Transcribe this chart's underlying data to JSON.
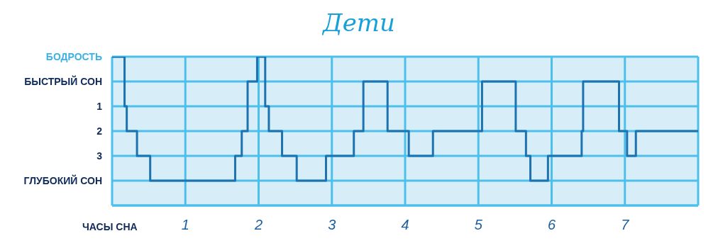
{
  "chart_data": {
    "type": "step",
    "title": "Дети",
    "xlabel": "ЧАСЫ СНА",
    "x": [
      0,
      0.17,
      0.2,
      0.34,
      0.52,
      1.68,
      1.77,
      1.85,
      1.98,
      2.09,
      2.14,
      2.32,
      2.52,
      2.92,
      3.3,
      3.43,
      3.76,
      4.05,
      4.38,
      5.05,
      5.51,
      5.65,
      5.71,
      5.95,
      6.41,
      6.43,
      6.92,
      7.03,
      7.15,
      8
    ],
    "series": [
      {
        "color": "#1d72b0",
        "values": [
          -1,
          1,
          2,
          3,
          4,
          3,
          2,
          0,
          -1,
          1,
          2,
          3,
          4,
          3,
          2,
          0,
          2,
          3,
          2,
          0,
          2,
          3,
          4,
          3,
          2,
          0,
          2,
          3,
          2,
          2
        ]
      }
    ],
    "xlim": [
      0,
      8
    ],
    "xticks": [
      1,
      2,
      3,
      4,
      5,
      6,
      7
    ],
    "ylim": [
      5,
      -1
    ],
    "yticks": [
      {
        "value": -1,
        "label": "БОДРОСТЬ"
      },
      {
        "value": 0,
        "label": "БЫСТРЫЙ СОН"
      },
      1,
      2,
      3,
      {
        "value": 4,
        "label": "ГЛУБОКИЙ СОН"
      },
      {
        "value": 5,
        "label": null
      }
    ],
    "grid": true
  }
}
